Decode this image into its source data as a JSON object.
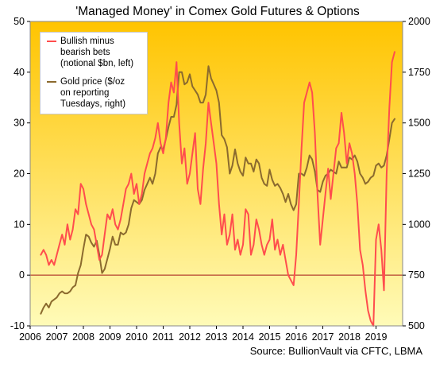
{
  "chart_data": {
    "type": "line",
    "title": "'Managed Money' in Comex Gold Futures & Options",
    "source": "Source: BullionVault via CFTC, LBMA",
    "x_ticks": [
      "2006",
      "2007",
      "2008",
      "2009",
      "2010",
      "2011",
      "2012",
      "2013",
      "2014",
      "2015",
      "2016",
      "2017",
      "2018",
      "2019"
    ],
    "xlim": [
      2006.0,
      2020.0
    ],
    "y_left": {
      "lim": [
        -10,
        50
      ],
      "ticks": [
        "50",
        "40",
        "30",
        "20",
        "10",
        "0",
        "-10"
      ]
    },
    "y_right": {
      "lim": [
        500,
        2000
      ],
      "ticks": [
        "2000",
        "1750",
        "1500",
        "1250",
        "1000",
        "750",
        "500"
      ]
    },
    "zero_line": true,
    "background": {
      "top_color": "#ffc400",
      "bottom_color": "#fffbb8"
    },
    "legend_position": "top-left",
    "series": [
      {
        "name": "Bullish minus bearish bets (notional $bn, left)",
        "legend_lines": [
          "Bullish minus",
          "bearish bets",
          "(notional $bn, left)"
        ],
        "axis": "left",
        "color": "#ff4d4d",
        "x": [
          2006.4,
          2006.5,
          2006.6,
          2006.7,
          2006.8,
          2006.9,
          2007.0,
          2007.1,
          2007.2,
          2007.3,
          2007.4,
          2007.5,
          2007.6,
          2007.7,
          2007.8,
          2007.9,
          2008.0,
          2008.1,
          2008.2,
          2008.3,
          2008.4,
          2008.5,
          2008.6,
          2008.7,
          2008.8,
          2008.9,
          2009.0,
          2009.1,
          2009.2,
          2009.3,
          2009.4,
          2009.5,
          2009.6,
          2009.7,
          2009.8,
          2009.9,
          2010.0,
          2010.1,
          2010.2,
          2010.3,
          2010.4,
          2010.5,
          2010.6,
          2010.7,
          2010.8,
          2010.9,
          2011.0,
          2011.1,
          2011.2,
          2011.3,
          2011.4,
          2011.5,
          2011.6,
          2011.7,
          2011.8,
          2011.9,
          2012.0,
          2012.1,
          2012.2,
          2012.3,
          2012.4,
          2012.5,
          2012.6,
          2012.7,
          2012.8,
          2012.9,
          2013.0,
          2013.1,
          2013.2,
          2013.3,
          2013.4,
          2013.5,
          2013.6,
          2013.7,
          2013.8,
          2013.9,
          2014.0,
          2014.1,
          2014.2,
          2014.3,
          2014.4,
          2014.5,
          2014.6,
          2014.7,
          2014.8,
          2014.9,
          2015.0,
          2015.1,
          2015.2,
          2015.3,
          2015.4,
          2015.5,
          2015.6,
          2015.7,
          2015.8,
          2015.9,
          2016.0,
          2016.1,
          2016.2,
          2016.3,
          2016.4,
          2016.5,
          2016.6,
          2016.7,
          2016.8,
          2016.9,
          2017.0,
          2017.1,
          2017.2,
          2017.3,
          2017.4,
          2017.5,
          2017.6,
          2017.7,
          2017.8,
          2017.9,
          2018.0,
          2018.1,
          2018.2,
          2018.3,
          2018.4,
          2018.5,
          2018.6,
          2018.7,
          2018.8,
          2018.9,
          2019.0,
          2019.1,
          2019.2,
          2019.3,
          2019.4,
          2019.5,
          2019.6,
          2019.7
        ],
        "y": [
          4,
          5,
          4,
          2,
          3,
          2,
          4,
          6,
          8,
          6,
          10,
          7,
          9,
          13,
          12,
          18,
          17,
          14,
          12,
          10,
          9,
          6,
          3,
          4,
          8,
          12,
          11,
          13,
          10,
          9,
          11,
          14,
          17,
          18,
          20,
          16,
          18,
          14,
          16,
          20,
          22,
          24,
          25,
          27,
          30,
          26,
          24,
          27,
          34,
          38,
          36,
          42,
          30,
          22,
          25,
          18,
          20,
          24,
          28,
          17,
          14,
          21,
          26,
          34,
          30,
          26,
          22,
          14,
          8,
          12,
          6,
          8,
          12,
          5,
          7,
          4,
          6,
          13,
          12,
          4,
          6,
          11,
          9,
          6,
          4,
          6,
          7,
          11,
          5,
          7,
          4,
          6,
          3,
          0,
          -1,
          -2,
          4,
          14,
          25,
          34,
          36,
          38,
          36,
          28,
          16,
          6,
          11,
          16,
          21,
          15,
          20,
          25,
          26,
          32,
          28,
          22,
          26,
          24,
          20,
          14,
          5,
          2,
          -3,
          -7,
          -9,
          -10,
          7,
          10,
          5,
          -3,
          20,
          33,
          42,
          44
        ]
      },
      {
        "name": "Gold price ($/oz on reporting Tuesdays, right)",
        "legend_lines": [
          "Gold price ($/oz",
          "on reporting",
          "Tuesdays, right)"
        ],
        "axis": "right",
        "color": "#8b6a2e",
        "x": [
          2006.4,
          2006.5,
          2006.6,
          2006.7,
          2006.8,
          2006.9,
          2007.0,
          2007.1,
          2007.2,
          2007.3,
          2007.4,
          2007.5,
          2007.6,
          2007.7,
          2007.8,
          2007.9,
          2008.0,
          2008.1,
          2008.2,
          2008.3,
          2008.4,
          2008.5,
          2008.6,
          2008.7,
          2008.8,
          2008.9,
          2009.0,
          2009.1,
          2009.2,
          2009.3,
          2009.4,
          2009.5,
          2009.6,
          2009.7,
          2009.8,
          2009.9,
          2010.0,
          2010.1,
          2010.2,
          2010.3,
          2010.4,
          2010.5,
          2010.6,
          2010.7,
          2010.8,
          2010.9,
          2011.0,
          2011.1,
          2011.2,
          2011.3,
          2011.4,
          2011.5,
          2011.6,
          2011.7,
          2011.8,
          2011.9,
          2012.0,
          2012.1,
          2012.2,
          2012.3,
          2012.4,
          2012.5,
          2012.6,
          2012.7,
          2012.8,
          2012.9,
          2013.0,
          2013.1,
          2013.2,
          2013.3,
          2013.4,
          2013.5,
          2013.6,
          2013.7,
          2013.8,
          2013.9,
          2014.0,
          2014.1,
          2014.2,
          2014.3,
          2014.4,
          2014.5,
          2014.6,
          2014.7,
          2014.8,
          2014.9,
          2015.0,
          2015.1,
          2015.2,
          2015.3,
          2015.4,
          2015.5,
          2015.6,
          2015.7,
          2015.8,
          2015.9,
          2016.0,
          2016.1,
          2016.2,
          2016.3,
          2016.4,
          2016.5,
          2016.6,
          2016.7,
          2016.8,
          2016.9,
          2017.0,
          2017.1,
          2017.2,
          2017.3,
          2017.4,
          2017.5,
          2017.6,
          2017.7,
          2017.8,
          2017.9,
          2018.0,
          2018.1,
          2018.2,
          2018.3,
          2018.4,
          2018.5,
          2018.6,
          2018.7,
          2018.8,
          2018.9,
          2019.0,
          2019.1,
          2019.2,
          2019.3,
          2019.4,
          2019.5,
          2019.6,
          2019.7
        ],
        "y": [
          560,
          590,
          610,
          590,
          620,
          630,
          640,
          660,
          670,
          660,
          660,
          670,
          690,
          700,
          760,
          800,
          880,
          950,
          940,
          910,
          890,
          920,
          850,
          760,
          780,
          830,
          880,
          940,
          900,
          900,
          960,
          950,
          960,
          1000,
          1080,
          1120,
          1110,
          1100,
          1120,
          1170,
          1200,
          1230,
          1200,
          1250,
          1350,
          1380,
          1370,
          1420,
          1480,
          1530,
          1530,
          1590,
          1750,
          1750,
          1690,
          1700,
          1740,
          1680,
          1660,
          1640,
          1600,
          1600,
          1640,
          1780,
          1720,
          1690,
          1660,
          1600,
          1440,
          1420,
          1380,
          1250,
          1290,
          1370,
          1300,
          1260,
          1240,
          1330,
          1300,
          1300,
          1260,
          1320,
          1300,
          1230,
          1200,
          1190,
          1270,
          1220,
          1190,
          1200,
          1180,
          1150,
          1110,
          1150,
          1100,
          1070,
          1100,
          1250,
          1250,
          1240,
          1280,
          1340,
          1320,
          1260,
          1170,
          1160,
          1210,
          1240,
          1250,
          1270,
          1260,
          1250,
          1310,
          1280,
          1280,
          1280,
          1330,
          1320,
          1340,
          1310,
          1250,
          1230,
          1200,
          1210,
          1230,
          1240,
          1290,
          1300,
          1280,
          1290,
          1340,
          1420,
          1500,
          1520
        ]
      }
    ]
  }
}
